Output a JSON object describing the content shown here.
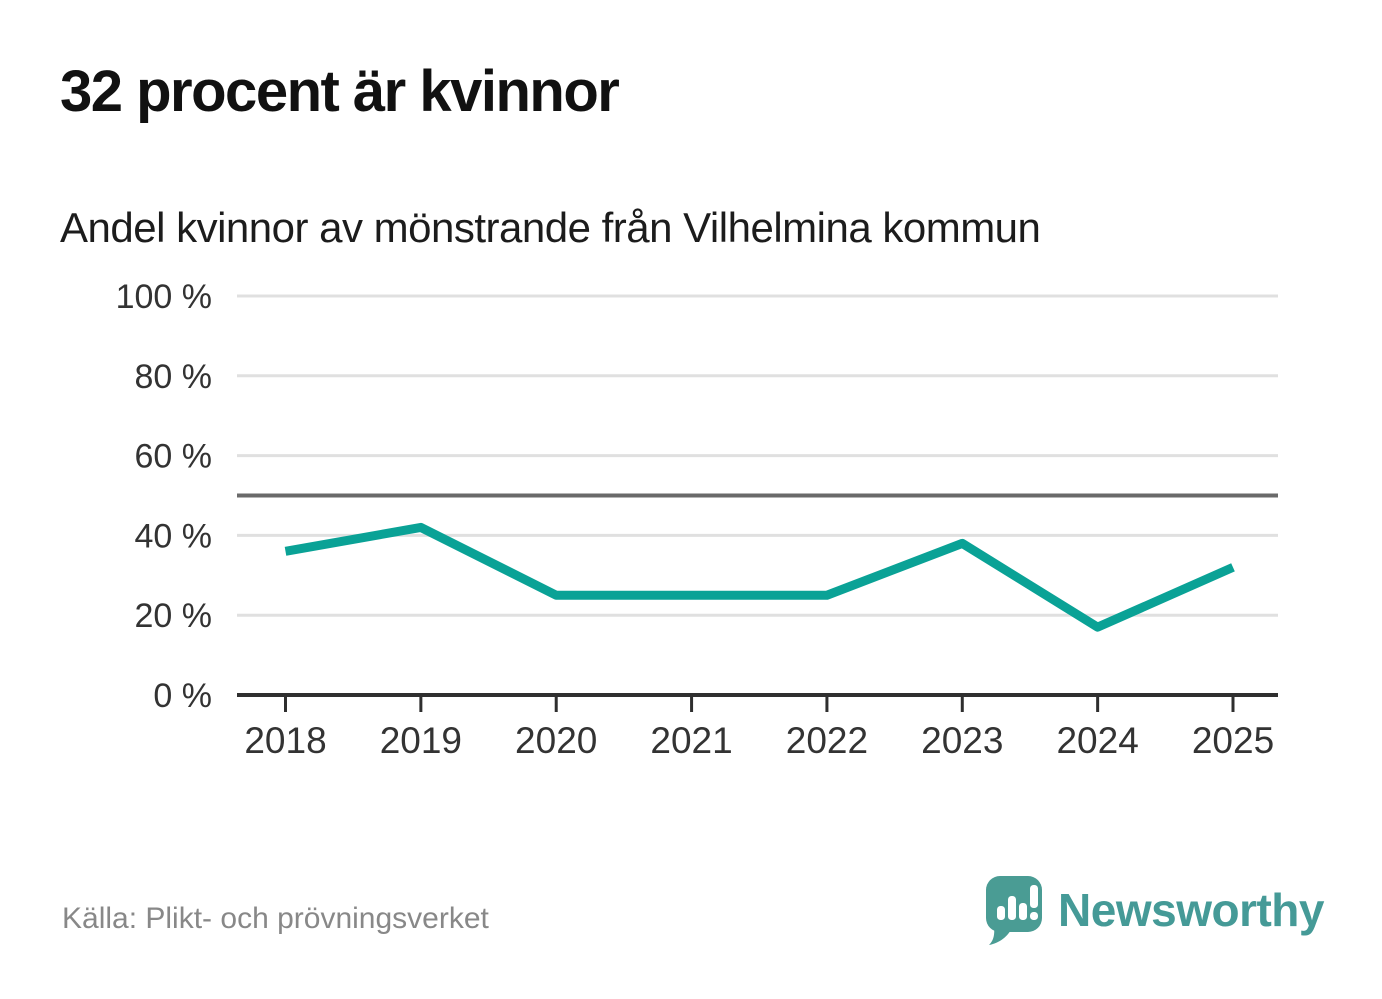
{
  "header": {
    "title": "32 procent är kvinnor",
    "subtitle": "Andel kvinnor av mönstrande från Vilhelmina kommun"
  },
  "chart_data": {
    "type": "line",
    "title": "32 procent är kvinnor",
    "subtitle": "Andel kvinnor av mönstrande från Vilhelmina kommun",
    "categories": [
      "2018",
      "2019",
      "2020",
      "2021",
      "2022",
      "2023",
      "2024",
      "2025"
    ],
    "series": [
      {
        "name": "Andel kvinnor av mönstrande",
        "values": [
          36,
          42,
          25,
          25,
          25,
          38,
          17,
          32
        ]
      }
    ],
    "unit": "%",
    "xlabel": "",
    "ylabel": "",
    "ylim": [
      0,
      100
    ],
    "yticks": [
      0,
      20,
      40,
      60,
      80,
      100
    ],
    "ytick_suffix": " %",
    "reference_line_y": 50,
    "grid": "horizontal",
    "legend_position": "none",
    "colors": {
      "line": "#0aa296",
      "grid": "#e0e0e0",
      "reference": "#6a6a6a",
      "axis": "#2f2f2f",
      "tick_label": "#333333"
    }
  },
  "footer": {
    "source": "Källa: Plikt- och prövningsverket",
    "brand": {
      "name": "Newsworthy",
      "color": "#459a97",
      "mark_color": "#4a9c94"
    }
  }
}
